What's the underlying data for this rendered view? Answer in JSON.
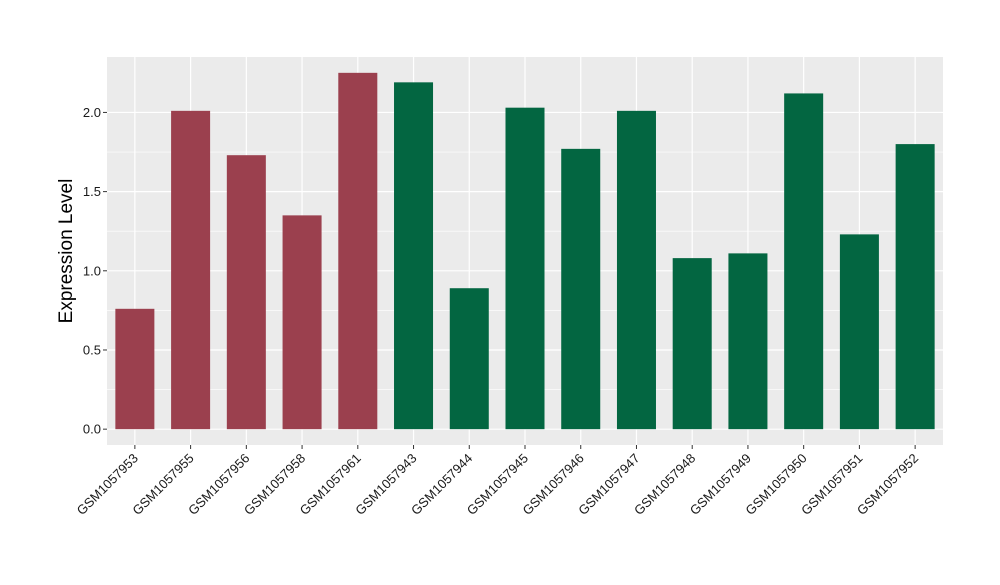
{
  "chart_data": {
    "type": "bar",
    "title": "",
    "xlabel": "",
    "ylabel": "Expression Level",
    "ylim": [
      -0.1,
      2.35
    ],
    "yticks": [
      0.0,
      0.5,
      1.0,
      1.5,
      2.0
    ],
    "ytick_labels": [
      "0.0",
      "0.5",
      "1.0",
      "1.5",
      "2.0"
    ],
    "grid": true,
    "legend": "none",
    "categories": [
      "GSM1057953",
      "GSM1057955",
      "GSM1057956",
      "GSM1057958",
      "GSM1057961",
      "GSM1057943",
      "GSM1057944",
      "GSM1057945",
      "GSM1057946",
      "GSM1057947",
      "GSM1057948",
      "GSM1057949",
      "GSM1057950",
      "GSM1057951",
      "GSM1057952"
    ],
    "values": [
      0.76,
      2.01,
      1.73,
      1.35,
      2.25,
      2.19,
      0.89,
      2.03,
      1.77,
      2.01,
      1.08,
      1.11,
      2.12,
      1.23,
      1.8
    ],
    "groups": [
      0,
      0,
      0,
      0,
      0,
      1,
      1,
      1,
      1,
      1,
      1,
      1,
      1,
      1,
      1
    ],
    "colors": {
      "group_0": "#9B404E",
      "group_1": "#036641",
      "panel_background": "#EBEBEB",
      "gridline": "#FFFFFF"
    }
  }
}
